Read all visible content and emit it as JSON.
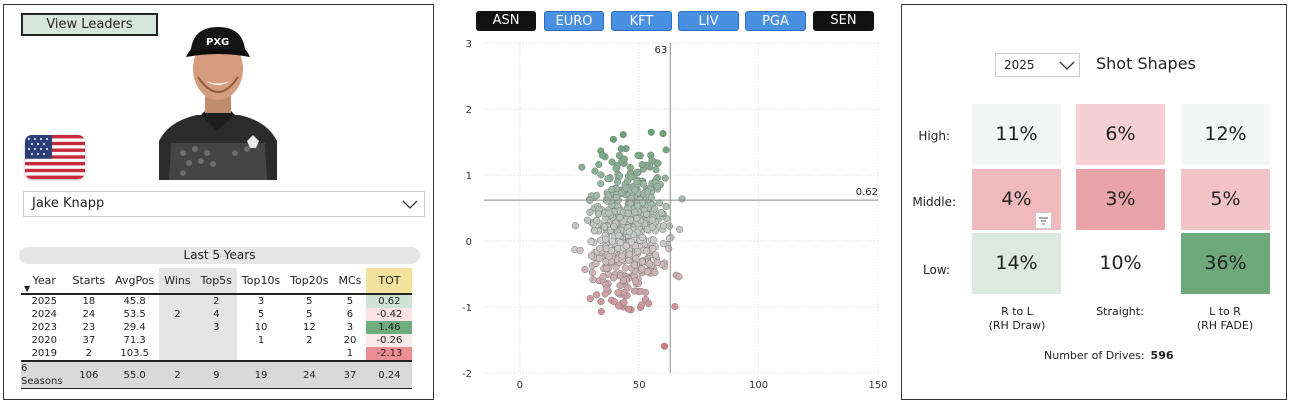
{
  "player": {
    "view_leaders_label": "View Leaders",
    "name": "Jake Knapp"
  },
  "stats": {
    "section_title": "Last 5 Years",
    "headers": [
      "Year",
      "Starts",
      "AvgPos",
      "Wins",
      "Top5s",
      "Top10s",
      "Top20s",
      "MCs",
      "TOT"
    ],
    "rows": [
      [
        "2025",
        "18",
        "45.8",
        "",
        "2",
        "3",
        "5",
        "5",
        "0.62"
      ],
      [
        "2024",
        "24",
        "53.5",
        "2",
        "4",
        "5",
        "5",
        "6",
        "-0.42"
      ],
      [
        "2023",
        "23",
        "29.4",
        "",
        "3",
        "10",
        "12",
        "3",
        "1.46"
      ],
      [
        "2020",
        "37",
        "71.3",
        "",
        "",
        "1",
        "2",
        "20",
        "-0.26"
      ],
      [
        "2019",
        "2",
        "103.5",
        "",
        "",
        "",
        "",
        "1",
        "-2.13"
      ]
    ],
    "total": [
      "6",
      "Seasons",
      "106",
      "55.0",
      "2",
      "9",
      "19",
      "24",
      "37",
      "0.24"
    ],
    "tot_colors": [
      "#cfe3d4",
      "#fbe3e3",
      "#70ad7e",
      "#fbe9e9",
      "#ec8c93"
    ]
  },
  "tours": [
    "ASN",
    "EURO",
    "KFT",
    "LIV",
    "PGA",
    "SEN"
  ],
  "tour_styles": [
    "dark",
    "blue",
    "blue",
    "blue",
    "blue",
    "dark"
  ],
  "scatter": {
    "y_ticks": [
      "3",
      "2",
      "1",
      "0",
      "-1",
      "-2"
    ],
    "x_ticks": [
      "0",
      "50",
      "100",
      "150"
    ],
    "vline_label": "63",
    "hline_label": "0.62"
  },
  "chart_data": {
    "type": "scatter",
    "xlim": [
      -15,
      150
    ],
    "ylim": [
      -2,
      3
    ],
    "vline_x": 63,
    "hline_y": 0.62,
    "grid": true,
    "points_count_approx": 596
  },
  "shot_shapes": {
    "year": "2025",
    "title": "Shot Shapes",
    "row_labels": [
      "High:",
      "Middle:",
      "Low:"
    ],
    "cells": [
      [
        "11%",
        "6%",
        "12%"
      ],
      [
        "4%",
        "3%",
        "5%"
      ],
      [
        "14%",
        "10%",
        "36%"
      ]
    ],
    "cell_colors": [
      [
        "#f3f6f4",
        "#f5cfd2",
        "#f3f6f4"
      ],
      [
        "#f0b9bd",
        "#e9a4aa",
        "#f2c3c7"
      ],
      [
        "#dce9df",
        "#ffffff",
        "#6ea97b"
      ]
    ],
    "col_labels": [
      [
        "R to L",
        "(RH Draw)"
      ],
      [
        "Straight:",
        ""
      ],
      [
        "L to R",
        "(RH FADE)"
      ]
    ],
    "drives_label": "Number of Drives:",
    "drives_value": "596"
  }
}
